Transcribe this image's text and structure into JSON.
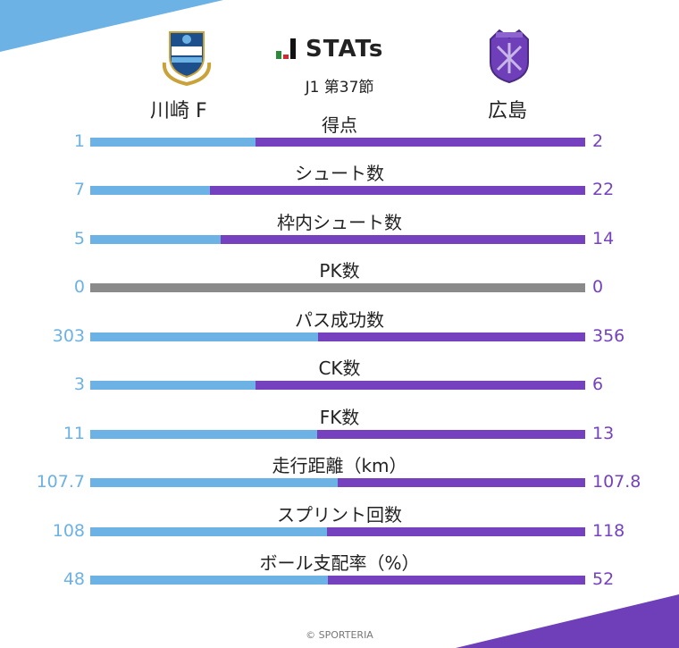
{
  "header": {
    "brand_title": "STATs",
    "competition": "J1 第37節"
  },
  "teams": {
    "home": {
      "name": "川崎 F",
      "color": "#6cb2e4"
    },
    "away": {
      "name": "広島",
      "color": "#7541bf"
    }
  },
  "chart_data": {
    "type": "bar",
    "categories": [
      "得点",
      "シュート数",
      "枠内シュート数",
      "PK数",
      "パス成功数",
      "CK数",
      "FK数",
      "走行距離（km）",
      "スプリント回数",
      "ボール支配率（%）"
    ],
    "series": [
      {
        "name": "川崎 F",
        "values": [
          "1",
          "7",
          "5",
          "0",
          "303",
          "3",
          "11",
          "107.7",
          "108",
          "48"
        ]
      },
      {
        "name": "広島",
        "values": [
          "2",
          "22",
          "14",
          "0",
          "356",
          "6",
          "13",
          "107.8",
          "118",
          "52"
        ]
      }
    ]
  },
  "footer": {
    "copyright": "© SPORTERIA"
  },
  "icons": {
    "home_crest": "kawasaki-frontale-crest-icon",
    "away_crest": "sanfrecce-hiroshima-crest-icon",
    "brand": "j-league-stats-logo-icon"
  }
}
